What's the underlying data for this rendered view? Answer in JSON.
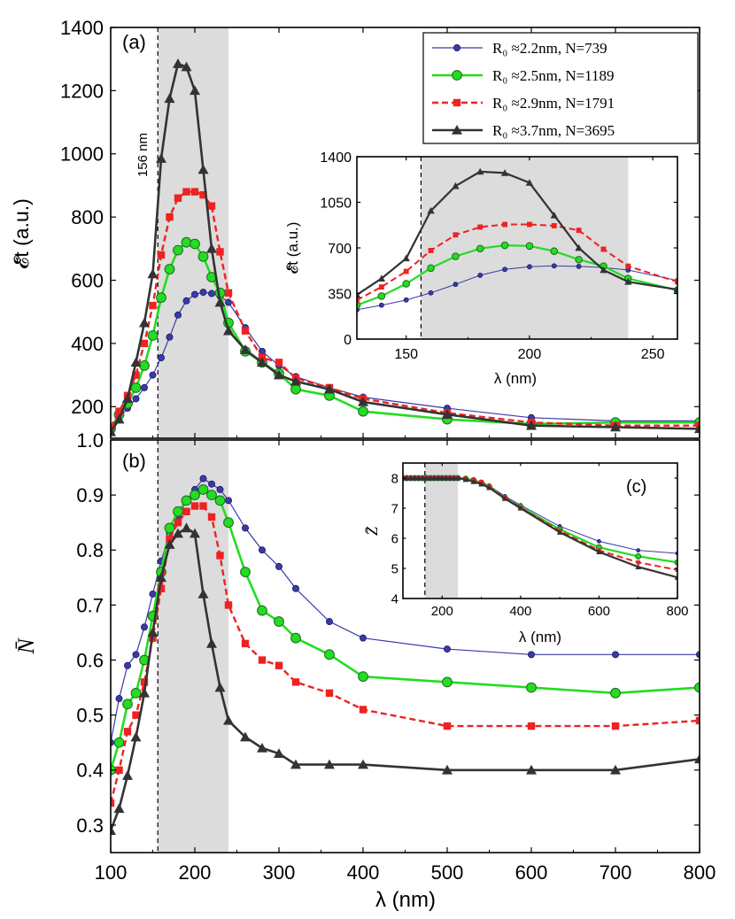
{
  "chart_data": [
    {
      "id": "a",
      "type": "line",
      "panel_label": "(a)",
      "xlabel": "",
      "ylabel": "𝓔̄t (a.u.)",
      "xlim": [
        100,
        800
      ],
      "ylim": [
        100,
        1400
      ],
      "xticks": [
        100,
        200,
        300,
        400,
        500,
        600,
        700,
        800
      ],
      "yticks": [
        200,
        400,
        600,
        800,
        1000,
        1200,
        1400
      ],
      "ytick_labels": [
        "200",
        "400",
        "600",
        "800",
        "1000",
        "1200",
        "1400"
      ],
      "shaded_region": [
        156,
        240
      ],
      "vline": 156,
      "vline_label": "156 nm",
      "legend_position": "top-right",
      "series": [
        {
          "name": "R₀ ≈2.2nm, N=739",
          "color": "#3a3aa8",
          "marker": "circle-small",
          "dashed": false,
          "x": [
            100,
            110,
            120,
            130,
            140,
            150,
            160,
            170,
            180,
            190,
            200,
            210,
            220,
            230,
            240,
            260,
            280,
            300,
            320,
            360,
            400,
            500,
            600,
            700,
            800
          ],
          "y": [
            125,
            165,
            195,
            225,
            260,
            300,
            355,
            420,
            490,
            535,
            555,
            562,
            558,
            550,
            530,
            450,
            375,
            330,
            295,
            260,
            230,
            195,
            165,
            155,
            155
          ]
        },
        {
          "name": "R₀ ≈2.5nm, N=1189",
          "color": "#22dd22",
          "marker": "circle",
          "dashed": false,
          "x": [
            100,
            110,
            120,
            130,
            140,
            150,
            160,
            170,
            180,
            190,
            200,
            210,
            220,
            230,
            240,
            260,
            280,
            300,
            320,
            360,
            400,
            500,
            600,
            700,
            800
          ],
          "y": [
            130,
            175,
            210,
            260,
            330,
            425,
            545,
            635,
            695,
            720,
            715,
            675,
            610,
            560,
            465,
            375,
            340,
            305,
            255,
            235,
            185,
            160,
            145,
            150,
            150
          ]
        },
        {
          "name": "R₀ ≈2.9nm, N=1791",
          "color": "#ee2222",
          "marker": "square",
          "dashed": true,
          "x": [
            100,
            110,
            120,
            130,
            140,
            150,
            160,
            170,
            180,
            190,
            200,
            210,
            220,
            230,
            240,
            260,
            280,
            300,
            320,
            360,
            400,
            500,
            600,
            700,
            800
          ],
          "y": [
            135,
            185,
            235,
            300,
            400,
            520,
            680,
            800,
            860,
            880,
            880,
            870,
            835,
            690,
            560,
            440,
            355,
            340,
            290,
            260,
            225,
            180,
            150,
            140,
            140
          ]
        },
        {
          "name": "R₀ ≈3.7nm, N=3695",
          "color": "#333333",
          "marker": "triangle",
          "dashed": false,
          "x": [
            100,
            110,
            120,
            130,
            140,
            150,
            160,
            170,
            180,
            190,
            200,
            210,
            220,
            230,
            240,
            260,
            280,
            300,
            320,
            360,
            400,
            500,
            600,
            700,
            800
          ],
          "y": [
            120,
            160,
            225,
            340,
            465,
            620,
            985,
            1175,
            1285,
            1275,
            1200,
            950,
            700,
            530,
            440,
            380,
            340,
            300,
            280,
            255,
            215,
            175,
            140,
            135,
            130
          ]
        }
      ]
    },
    {
      "id": "a-inset",
      "type": "line",
      "xlabel": "λ (nm)",
      "ylabel": "𝓔̄t (a.u.)",
      "xlim": [
        130,
        260
      ],
      "ylim": [
        0,
        1400
      ],
      "xticks": [
        150,
        200,
        250
      ],
      "yticks": [
        0,
        350,
        700,
        1050,
        1400
      ],
      "shaded_region": [
        156,
        240
      ],
      "vline": 156,
      "series": [
        {
          "name": "R₀ ≈2.2nm, N=739",
          "x": [
            130,
            140,
            150,
            160,
            170,
            180,
            190,
            200,
            210,
            220,
            230,
            240,
            260
          ],
          "y": [
            225,
            260,
            300,
            355,
            420,
            490,
            535,
            555,
            562,
            558,
            550,
            530,
            450
          ]
        },
        {
          "name": "R₀ ≈2.5nm, N=1189",
          "x": [
            130,
            140,
            150,
            160,
            170,
            180,
            190,
            200,
            210,
            220,
            230,
            240,
            260
          ],
          "y": [
            260,
            330,
            425,
            545,
            635,
            695,
            720,
            715,
            675,
            610,
            560,
            465,
            375
          ]
        },
        {
          "name": "R₀ ≈2.9nm, N=1791",
          "x": [
            130,
            140,
            150,
            160,
            170,
            180,
            190,
            200,
            210,
            220,
            230,
            240,
            260
          ],
          "y": [
            300,
            400,
            520,
            680,
            800,
            860,
            880,
            880,
            870,
            835,
            690,
            560,
            440
          ]
        },
        {
          "name": "R₀ ≈3.7nm, N=3695",
          "x": [
            130,
            140,
            150,
            160,
            170,
            180,
            190,
            200,
            210,
            220,
            230,
            240,
            260
          ],
          "y": [
            340,
            465,
            620,
            985,
            1175,
            1285,
            1275,
            1200,
            950,
            700,
            530,
            440,
            380
          ]
        }
      ]
    },
    {
      "id": "b",
      "type": "line",
      "panel_label": "(b)",
      "xlabel": "λ (nm)",
      "ylabel": "N̄",
      "xlim": [
        100,
        800
      ],
      "ylim": [
        0.25,
        1.0
      ],
      "xticks": [
        100,
        200,
        300,
        400,
        500,
        600,
        700,
        800
      ],
      "yticks": [
        0.3,
        0.4,
        0.5,
        0.6,
        0.7,
        0.8,
        0.9,
        1.0
      ],
      "ytick_labels": [
        "0.3",
        "0.4",
        "0.5",
        "0.6",
        "0.7",
        "0.8",
        "0.9",
        "1.0"
      ],
      "shaded_region": [
        156,
        240
      ],
      "vline": 156,
      "series": [
        {
          "name": "R₀ ≈2.2nm, N=739",
          "x": [
            100,
            110,
            120,
            130,
            140,
            150,
            160,
            170,
            180,
            190,
            200,
            210,
            220,
            230,
            240,
            260,
            280,
            300,
            320,
            360,
            400,
            500,
            600,
            700,
            800
          ],
          "y": [
            0.45,
            0.53,
            0.59,
            0.61,
            0.66,
            0.72,
            0.78,
            0.83,
            0.86,
            0.89,
            0.91,
            0.93,
            0.92,
            0.91,
            0.89,
            0.84,
            0.8,
            0.77,
            0.73,
            0.67,
            0.64,
            0.62,
            0.61,
            0.61,
            0.61
          ]
        },
        {
          "name": "R₀ ≈2.5nm, N=1189",
          "x": [
            100,
            110,
            120,
            130,
            140,
            150,
            160,
            170,
            180,
            190,
            200,
            210,
            220,
            230,
            240,
            260,
            280,
            300,
            320,
            360,
            400,
            500,
            600,
            700,
            800
          ],
          "y": [
            0.4,
            0.45,
            0.52,
            0.54,
            0.6,
            0.68,
            0.76,
            0.84,
            0.87,
            0.89,
            0.9,
            0.91,
            0.9,
            0.89,
            0.85,
            0.76,
            0.69,
            0.67,
            0.64,
            0.61,
            0.57,
            0.56,
            0.55,
            0.54,
            0.55
          ]
        },
        {
          "name": "R₀ ≈2.9nm, N=1791",
          "x": [
            100,
            110,
            120,
            130,
            140,
            150,
            160,
            170,
            180,
            190,
            200,
            210,
            220,
            230,
            240,
            260,
            280,
            300,
            320,
            360,
            400,
            500,
            600,
            700,
            800
          ],
          "y": [
            0.34,
            0.4,
            0.47,
            0.5,
            0.56,
            0.64,
            0.73,
            0.82,
            0.85,
            0.87,
            0.88,
            0.88,
            0.86,
            0.79,
            0.7,
            0.63,
            0.6,
            0.59,
            0.56,
            0.54,
            0.51,
            0.48,
            0.48,
            0.48,
            0.49
          ]
        },
        {
          "name": "R₀ ≈3.7nm, N=3695",
          "x": [
            100,
            110,
            120,
            130,
            140,
            150,
            160,
            170,
            180,
            190,
            200,
            210,
            220,
            230,
            240,
            260,
            280,
            300,
            320,
            360,
            400,
            500,
            600,
            700,
            800
          ],
          "y": [
            0.29,
            0.33,
            0.39,
            0.46,
            0.54,
            0.65,
            0.75,
            0.81,
            0.83,
            0.84,
            0.83,
            0.72,
            0.63,
            0.55,
            0.49,
            0.46,
            0.44,
            0.43,
            0.41,
            0.41,
            0.41,
            0.4,
            0.4,
            0.4,
            0.42
          ]
        }
      ]
    },
    {
      "id": "c",
      "type": "line",
      "panel_label": "(c)",
      "xlabel": "λ (nm)",
      "ylabel": "Z̄",
      "xlim": [
        100,
        800
      ],
      "ylim": [
        4,
        8.5
      ],
      "xticks": [
        200,
        400,
        600,
        800
      ],
      "yticks": [
        4,
        5,
        6,
        7,
        8
      ],
      "shaded_region": [
        156,
        240
      ],
      "vline": 156,
      "series": [
        {
          "name": "R₀ ≈2.2nm, N=739",
          "x": [
            100,
            110,
            120,
            130,
            140,
            150,
            160,
            170,
            180,
            190,
            200,
            210,
            220,
            230,
            240,
            260,
            280,
            300,
            320,
            360,
            400,
            500,
            600,
            700,
            800
          ],
          "y": [
            8,
            8,
            8,
            8,
            8,
            8,
            8,
            8,
            8,
            8,
            8,
            8,
            8,
            8,
            8,
            7.98,
            7.92,
            7.85,
            7.75,
            7.4,
            7.1,
            6.4,
            5.9,
            5.6,
            5.5
          ]
        },
        {
          "name": "R₀ ≈2.5nm, N=1189",
          "x": [
            100,
            110,
            120,
            130,
            140,
            150,
            160,
            170,
            180,
            190,
            200,
            210,
            220,
            230,
            240,
            260,
            280,
            300,
            320,
            360,
            400,
            500,
            600,
            700,
            800
          ],
          "y": [
            8,
            8,
            8,
            8,
            8,
            8,
            8,
            8,
            8,
            8,
            8,
            8,
            8,
            8,
            8,
            7.98,
            7.93,
            7.85,
            7.72,
            7.35,
            7.05,
            6.3,
            5.7,
            5.4,
            5.2
          ]
        },
        {
          "name": "R₀ ≈2.9nm, N=1791",
          "x": [
            100,
            110,
            120,
            130,
            140,
            150,
            160,
            170,
            180,
            190,
            200,
            210,
            220,
            230,
            240,
            260,
            280,
            300,
            320,
            360,
            400,
            500,
            600,
            700,
            800
          ],
          "y": [
            8,
            8,
            8,
            8,
            8,
            8,
            8,
            8,
            8,
            8,
            8,
            8,
            8,
            8,
            8,
            7.98,
            7.93,
            7.87,
            7.72,
            7.35,
            7.02,
            6.25,
            5.6,
            5.2,
            4.95
          ]
        },
        {
          "name": "R₀ ≈3.7nm, N=3695",
          "x": [
            100,
            110,
            120,
            130,
            140,
            150,
            160,
            170,
            180,
            190,
            200,
            210,
            220,
            230,
            240,
            260,
            280,
            300,
            320,
            360,
            400,
            500,
            600,
            700,
            800
          ],
          "y": [
            8,
            8,
            8,
            8,
            8,
            8,
            8,
            8,
            8,
            8,
            8,
            8,
            8,
            8,
            8,
            7.95,
            7.88,
            7.8,
            7.68,
            7.32,
            7.0,
            6.2,
            5.55,
            5.05,
            4.7
          ]
        }
      ]
    }
  ]
}
